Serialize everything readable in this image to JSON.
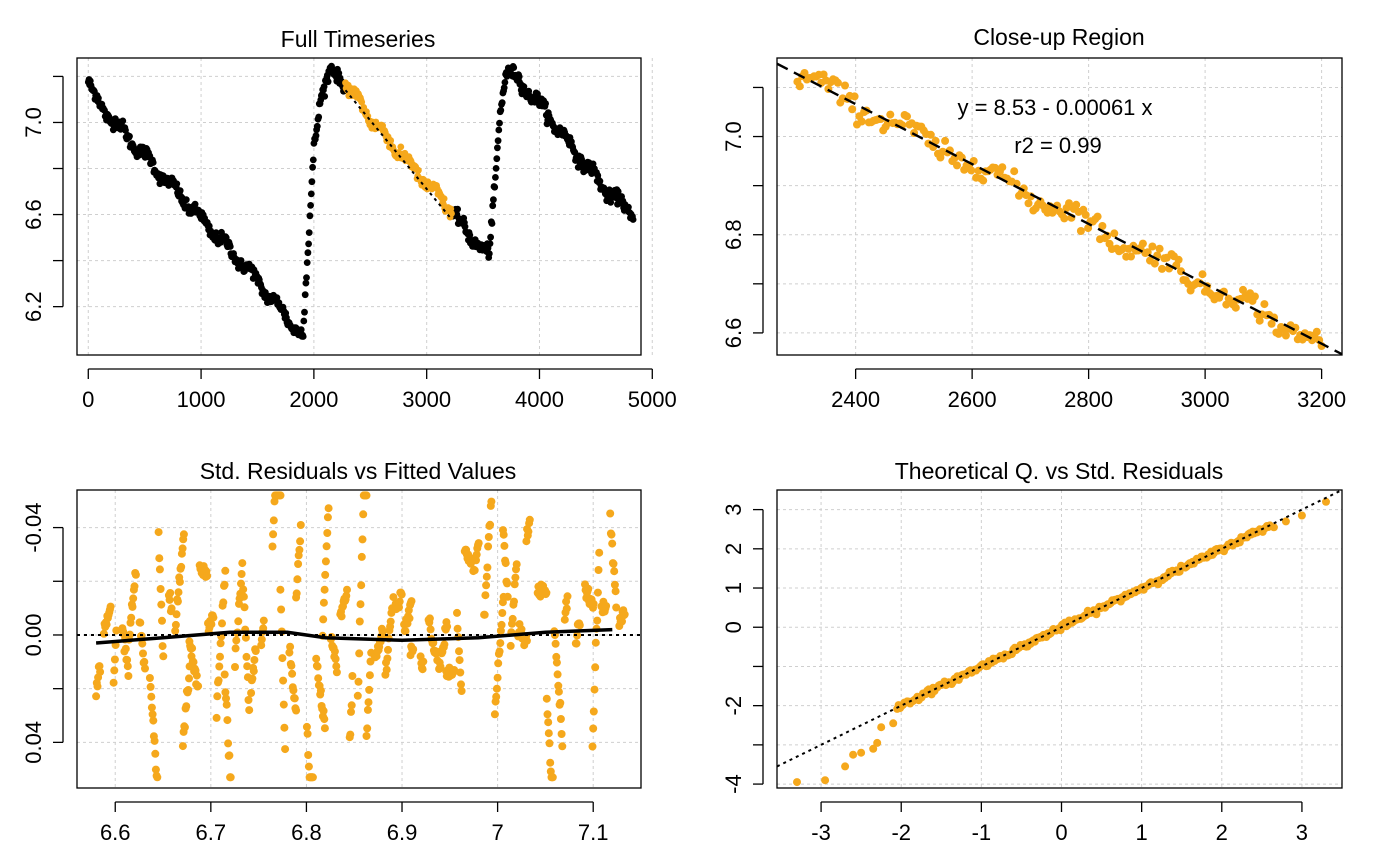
{
  "colors": {
    "points": "#F5A81C",
    "timeseries": "#000000",
    "highlight": "#F5A81C",
    "line": "#000000",
    "grid": "#cfcfcf"
  },
  "chart_data": [
    {
      "id": "full",
      "type": "scatter",
      "title": "Full Timeseries",
      "xlabel": "",
      "ylabel": "",
      "xlim": [
        -100,
        4900
      ],
      "ylim": [
        5.99,
        7.28
      ],
      "xticks": [
        0,
        1000,
        2000,
        3000,
        4000,
        5000
      ],
      "yticks": [
        6.2,
        6.4,
        6.6,
        6.8,
        7.0,
        7.2
      ],
      "ytick_labels": [
        "6.2",
        "",
        "6.6",
        "",
        "7.0",
        ""
      ],
      "grid": true,
      "series": [
        {
          "color": "black",
          "segments": [
            {
              "x": [
                0,
                40,
                200,
                600,
                1000,
                1400,
                1800,
                1900
              ],
              "y": [
                7.18,
                7.12,
                7.02,
                6.8,
                6.58,
                6.37,
                6.13,
                6.07
              ]
            },
            {
              "x": [
                1905,
                1950,
                2000,
                2060,
                2120,
                2150
              ],
              "y": [
                6.08,
                6.45,
                6.9,
                7.12,
                7.18,
                7.22
              ]
            },
            {
              "x": [
                2150,
                2280
              ],
              "y": [
                7.22,
                7.18
              ]
            },
            {
              "x": [
                3220,
                3350,
                3450,
                3550
              ],
              "y": [
                6.62,
                6.52,
                6.48,
                6.42
              ]
            },
            {
              "x": [
                3555,
                3600,
                3650,
                3700,
                3760,
                3820
              ],
              "y": [
                6.42,
                6.7,
                7.05,
                7.22,
                7.2,
                7.18
              ]
            },
            {
              "x": [
                3820,
                4000,
                4200,
                4400,
                4600,
                4830
              ],
              "y": [
                7.18,
                7.08,
                6.95,
                6.82,
                6.7,
                6.6
              ]
            }
          ]
        },
        {
          "color": "orange",
          "segments": [
            {
              "x": [
                2280,
                2500,
                2700,
                2900,
                3100,
                3220
              ],
              "y": [
                7.17,
                7.02,
                6.9,
                6.79,
                6.68,
                6.62
              ]
            }
          ]
        }
      ],
      "fit_line": {
        "x": [
          2280,
          3220
        ],
        "y": [
          7.14,
          6.58
        ],
        "style": "dotted"
      }
    },
    {
      "id": "closeup",
      "type": "scatter",
      "title": "Close-up Region",
      "xlabel": "",
      "ylabel": "",
      "xlim": [
        2265,
        3235
      ],
      "ylim": [
        6.555,
        7.16
      ],
      "xticks": [
        2400,
        2600,
        2800,
        3000,
        3200
      ],
      "yticks": [
        6.6,
        6.7,
        6.8,
        6.9,
        7.0,
        7.1
      ],
      "ytick_labels": [
        "6.6",
        "",
        "6.8",
        "",
        "7.0",
        ""
      ],
      "grid": true,
      "points_range": {
        "x": [
          2300,
          3200
        ]
      },
      "fit": {
        "intercept": 8.53,
        "slope": -0.00061,
        "style": "dashed"
      },
      "annotations": [
        "y = 8.53 - 0.00061 x",
        "r2 = 0.99"
      ]
    },
    {
      "id": "resid",
      "type": "scatter",
      "title": "Std. Residuals vs Fitted Values",
      "xlabel": "",
      "ylabel": "",
      "xlim": [
        6.56,
        7.15
      ],
      "ylim": [
        0.057,
        -0.054
      ],
      "xticks": [
        6.6,
        6.7,
        6.8,
        6.9,
        7.0,
        7.1
      ],
      "yticks": [
        -0.04,
        -0.02,
        0.0,
        0.02,
        0.04
      ],
      "ytick_labels": [
        "-0.04",
        "",
        "0.00",
        "",
        "0.04"
      ],
      "grid": true,
      "reference_line": {
        "y": 0,
        "style": "dotted"
      },
      "smooth_line": {
        "x": [
          6.58,
          6.65,
          6.72,
          6.78,
          6.82,
          6.9,
          6.98,
          7.05,
          7.12
        ],
        "y": [
          0.003,
          0.001,
          -0.001,
          -0.001,
          0.001,
          0.002,
          0.001,
          -0.001,
          -0.002
        ]
      }
    },
    {
      "id": "qq",
      "type": "scatter",
      "title": "Theoretical Q. vs Std. Residuals",
      "xlabel": "",
      "ylabel": "",
      "xlim": [
        -3.55,
        3.5
      ],
      "ylim": [
        -4.1,
        3.5
      ],
      "xticks": [
        -3,
        -2,
        -1,
        0,
        1,
        2,
        3
      ],
      "yticks": [
        -4,
        -3,
        -2,
        -1,
        0,
        1,
        2,
        3
      ],
      "ytick_labels": [
        "-4",
        "",
        "-2",
        "",
        "0",
        "1",
        "2",
        "3"
      ],
      "grid": true,
      "reference_line": {
        "intercept": 0,
        "slope": 1.0,
        "style": "dotted"
      },
      "tail_points": [
        {
          "x": -3.3,
          "y": -3.95
        },
        {
          "x": -2.95,
          "y": -3.9
        },
        {
          "x": -2.7,
          "y": -3.55
        },
        {
          "x": -2.6,
          "y": -3.25
        },
        {
          "x": -2.5,
          "y": -3.2
        },
        {
          "x": -2.35,
          "y": -3.1
        },
        {
          "x": -2.3,
          "y": -2.95
        },
        {
          "x": -2.25,
          "y": -2.55
        },
        {
          "x": -2.1,
          "y": -2.45
        },
        {
          "x": 2.65,
          "y": 2.55
        },
        {
          "x": 2.8,
          "y": 2.7
        },
        {
          "x": 3.0,
          "y": 2.85
        },
        {
          "x": 3.3,
          "y": 3.2
        }
      ]
    }
  ]
}
